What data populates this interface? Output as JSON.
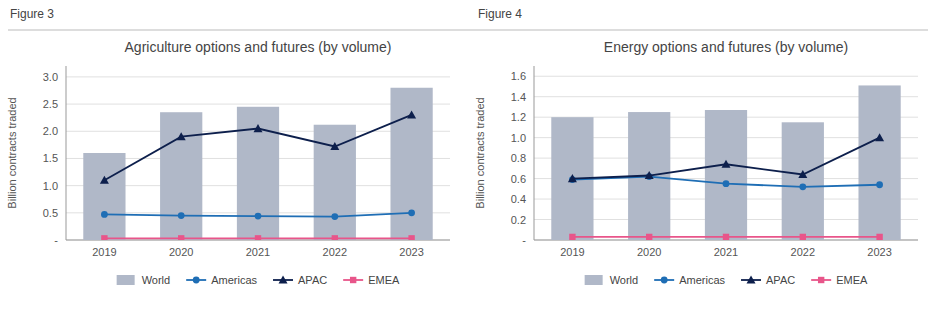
{
  "chart_data": [
    {
      "type": "bar",
      "title": "Agriculture options and futures (by volume)",
      "annotations": [
        "Figure 3"
      ],
      "y_label": "Billion contracts traded",
      "categories": [
        "2019",
        "2020",
        "2021",
        "2022",
        "2023"
      ],
      "series": [
        {
          "name": "World",
          "type": "bar",
          "color": "#b0b8c8",
          "values": [
            1.6,
            2.35,
            2.45,
            2.12,
            2.8
          ]
        },
        {
          "name": "Americas",
          "type": "line",
          "marker": "circle",
          "color": "#1f6eb5",
          "values": [
            0.47,
            0.45,
            0.44,
            0.43,
            0.5
          ]
        },
        {
          "name": "APAC",
          "type": "line",
          "marker": "triangle",
          "color": "#0d1f4c",
          "values": [
            1.1,
            1.9,
            2.05,
            1.72,
            2.3
          ]
        },
        {
          "name": "EMEA",
          "type": "line",
          "marker": "square",
          "color": "#e8558a",
          "values": [
            0.03,
            0.03,
            0.03,
            0.03,
            0.03
          ]
        }
      ],
      "ylim": [
        0,
        3.2
      ],
      "yticks": [
        {
          "value": 0,
          "label": "-"
        },
        0.5,
        {
          "value": 1.0,
          "label": "1.0"
        },
        1.5,
        {
          "value": 2.0,
          "label": "2.0"
        },
        2.5,
        {
          "value": 3.0,
          "label": "3.0"
        }
      ],
      "grid": true,
      "legend": "bottom"
    },
    {
      "type": "bar",
      "title": "Energy options and futures (by volume)",
      "annotations": [
        "Figure 4"
      ],
      "y_label": "Billion contracts traded",
      "categories": [
        "2019",
        "2020",
        "2021",
        "2022",
        "2023"
      ],
      "series": [
        {
          "name": "World",
          "type": "bar",
          "color": "#b0b8c8",
          "values": [
            1.2,
            1.25,
            1.27,
            1.15,
            1.51
          ]
        },
        {
          "name": "Americas",
          "type": "line",
          "marker": "circle",
          "color": "#1f6eb5",
          "values": [
            0.59,
            0.62,
            0.55,
            0.52,
            0.54
          ]
        },
        {
          "name": "APAC",
          "type": "line",
          "marker": "triangle",
          "color": "#0d1f4c",
          "values": [
            0.6,
            0.63,
            0.74,
            0.64,
            1.0
          ]
        },
        {
          "name": "EMEA",
          "type": "line",
          "marker": "square",
          "color": "#e8558a",
          "values": [
            0.03,
            0.03,
            0.03,
            0.03,
            0.03
          ]
        }
      ],
      "ylim": [
        0,
        1.7
      ],
      "yticks": [
        {
          "value": 0,
          "label": "-"
        },
        0.2,
        0.4,
        0.6,
        0.8,
        {
          "value": 1.0,
          "label": "1.0"
        },
        1.2,
        1.4,
        1.6
      ],
      "grid": true,
      "legend": "bottom"
    }
  ]
}
